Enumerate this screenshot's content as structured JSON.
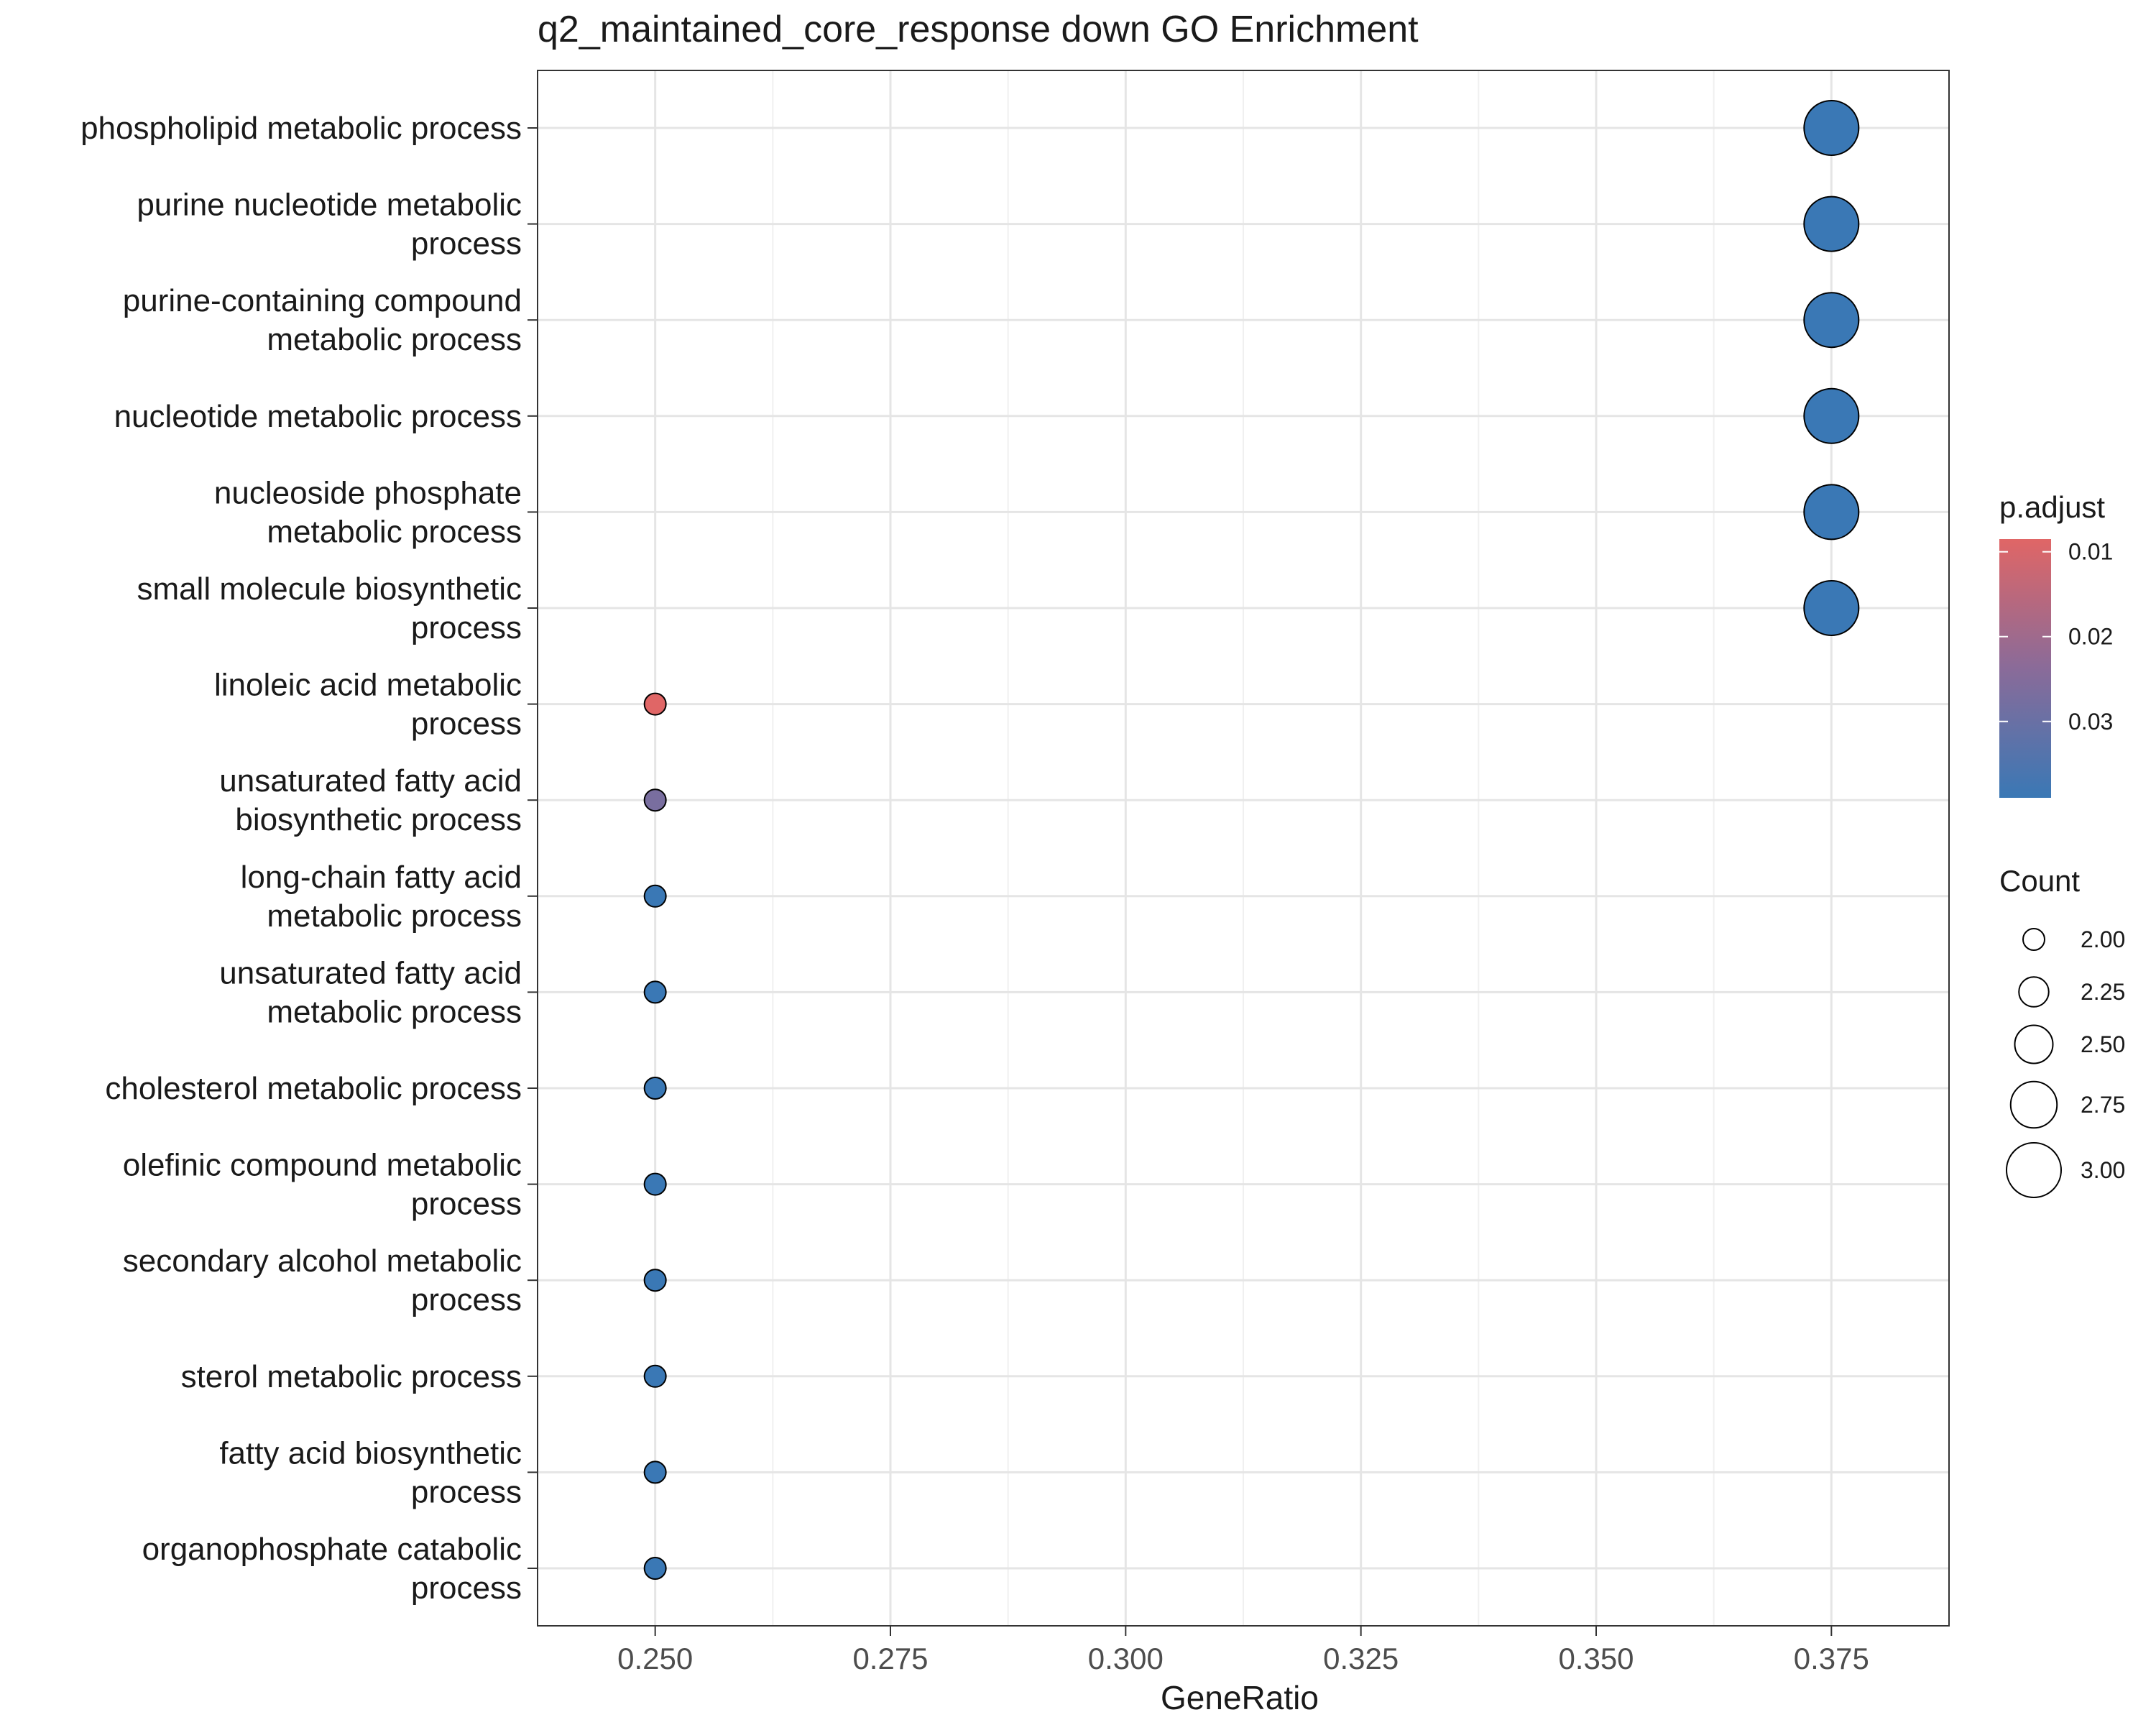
{
  "chart_data": {
    "type": "scatter",
    "title": "q2_maintained_core_response down GO Enrichment",
    "xlabel": "GeneRatio",
    "ylabel": "",
    "xlim": [
      0.2375,
      0.3875
    ],
    "xticks": [
      "0.250",
      "0.275",
      "0.300",
      "0.325",
      "0.350",
      "0.375"
    ],
    "xtick_values": [
      0.25,
      0.275,
      0.3,
      0.325,
      0.35,
      0.375
    ],
    "grid": true,
    "categories": [
      "phospholipid metabolic process",
      "purine nucleotide metabolic process",
      "purine-containing compound metabolic process",
      "nucleotide metabolic process",
      "nucleoside phosphate metabolic process",
      "small molecule biosynthetic process",
      "linoleic acid metabolic process",
      "unsaturated fatty acid biosynthetic process",
      "long-chain fatty acid metabolic process",
      "unsaturated fatty acid metabolic process",
      "cholesterol metabolic process",
      "olefinic compound metabolic process",
      "secondary alcohol metabolic process",
      "sterol metabolic process",
      "fatty acid biosynthetic process",
      "organophosphate catabolic process"
    ],
    "category_lines": [
      [
        "phospholipid metabolic process"
      ],
      [
        "purine nucleotide metabolic",
        "process"
      ],
      [
        "purine-containing compound",
        "metabolic process"
      ],
      [
        "nucleotide metabolic process"
      ],
      [
        "nucleoside phosphate",
        "metabolic process"
      ],
      [
        "small molecule biosynthetic",
        "process"
      ],
      [
        "linoleic acid metabolic",
        "process"
      ],
      [
        "unsaturated fatty acid",
        "biosynthetic process"
      ],
      [
        "long-chain fatty acid",
        "metabolic process"
      ],
      [
        "unsaturated fatty acid",
        "metabolic process"
      ],
      [
        "cholesterol metabolic process"
      ],
      [
        "olefinic compound metabolic",
        "process"
      ],
      [
        "secondary alcohol metabolic",
        "process"
      ],
      [
        "sterol metabolic process"
      ],
      [
        "fatty acid biosynthetic",
        "process"
      ],
      [
        "organophosphate catabolic",
        "process"
      ]
    ],
    "gene_ratio": [
      0.375,
      0.375,
      0.375,
      0.375,
      0.375,
      0.375,
      0.25,
      0.25,
      0.25,
      0.25,
      0.25,
      0.25,
      0.25,
      0.25,
      0.25,
      0.25
    ],
    "count": [
      3,
      3,
      3,
      3,
      3,
      3,
      2,
      2,
      2,
      2,
      2,
      2,
      2,
      2,
      2,
      2
    ],
    "p_adjust": [
      0.039,
      0.039,
      0.039,
      0.039,
      0.039,
      0.039,
      0.0085,
      0.027,
      0.039,
      0.039,
      0.039,
      0.039,
      0.039,
      0.039,
      0.039,
      0.039
    ],
    "color_legend": {
      "title": "p.adjust",
      "range": [
        0.0085,
        0.039
      ],
      "ticks": [
        0.01,
        0.02,
        0.03
      ],
      "tick_labels": [
        "0.01",
        "0.02",
        "0.03"
      ],
      "low_color": "#e06666",
      "high_color": "#3a78b5",
      "mid_color": "#8a6b99"
    },
    "size_legend": {
      "title": "Count",
      "values": [
        2.0,
        2.25,
        2.5,
        2.75,
        3.0
      ],
      "labels": [
        "2.00",
        "2.25",
        "2.50",
        "2.75",
        "3.00"
      ]
    },
    "legend_position": "right"
  }
}
